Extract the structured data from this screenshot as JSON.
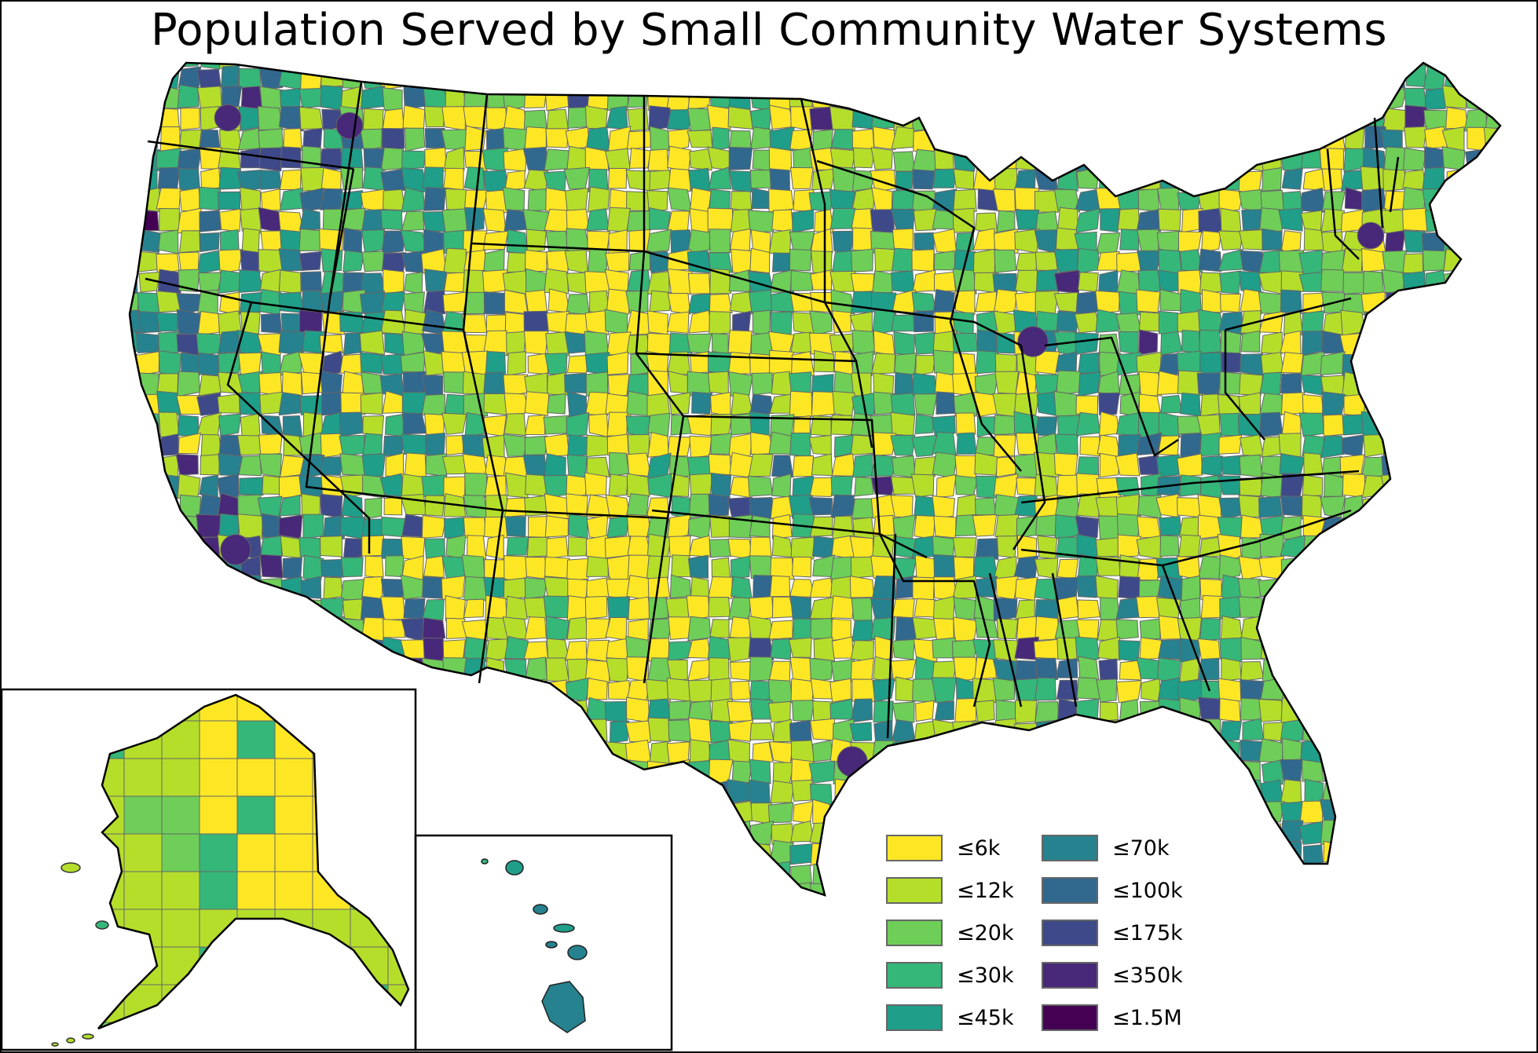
{
  "title": "Population Served by Small Community Water Systems",
  "legend": [
    {
      "label": "≤6k",
      "color": "#fde725"
    },
    {
      "label": "≤12k",
      "color": "#b5de2b"
    },
    {
      "label": "≤20k",
      "color": "#6ece58"
    },
    {
      "label": "≤30k",
      "color": "#35b779"
    },
    {
      "label": "≤45k",
      "color": "#1f9e89"
    },
    {
      "label": "≤70k",
      "color": "#26828e"
    },
    {
      "label": "≤100k",
      "color": "#31688e"
    },
    {
      "label": "≤175k",
      "color": "#3e4989"
    },
    {
      "label": "≤350k",
      "color": "#482878"
    },
    {
      "label": "≤1.5M",
      "color": "#440154"
    }
  ],
  "map": {
    "regions": [
      "Contiguous United States",
      "Alaska",
      "Hawaii"
    ],
    "county_border_color": "#666666",
    "state_border_color": "#000000"
  }
}
